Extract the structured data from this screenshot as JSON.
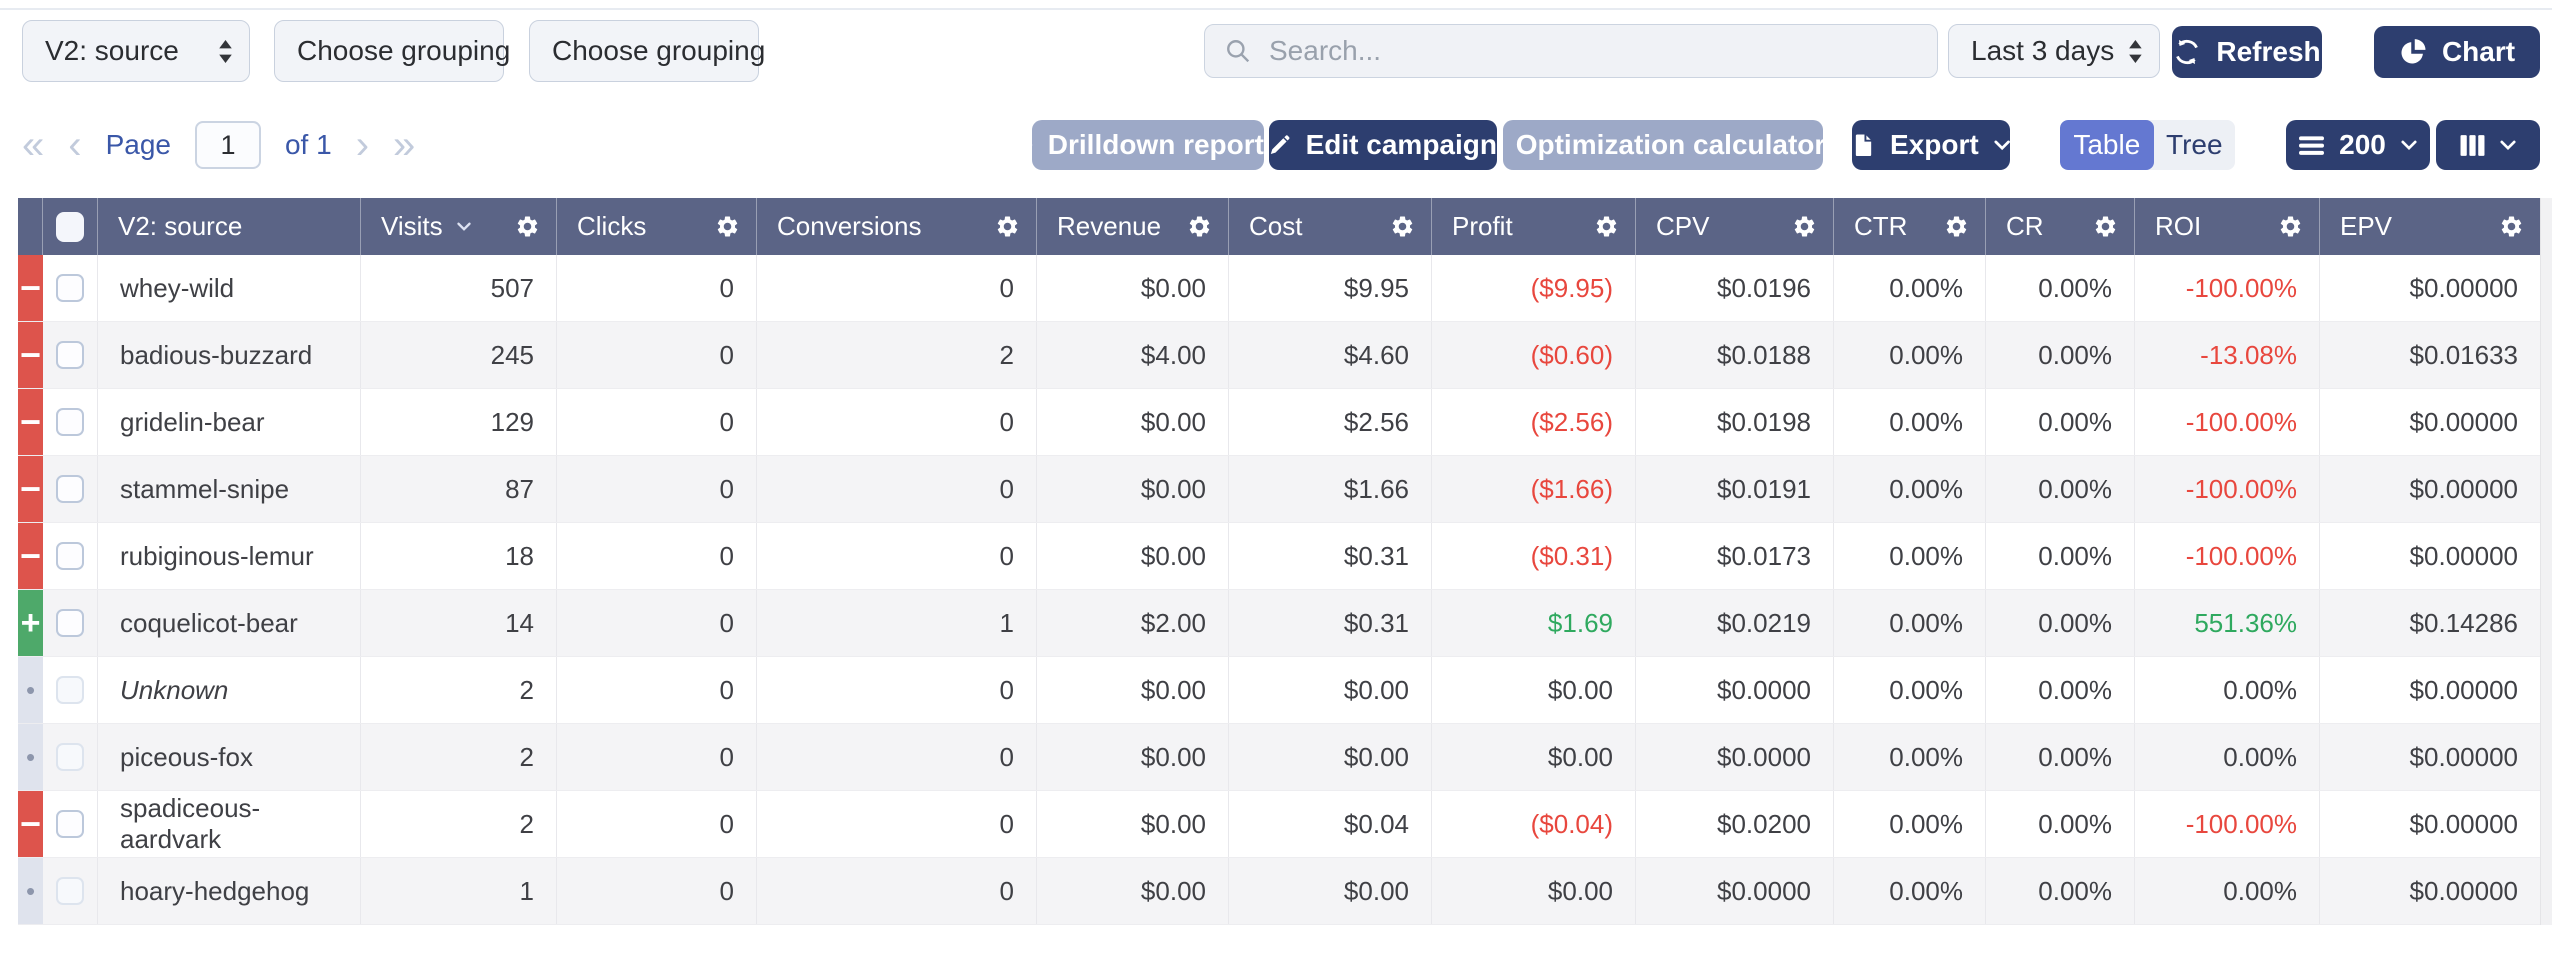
{
  "toolbar": {
    "selects": [
      "V2: source",
      "Choose grouping",
      "Choose grouping"
    ],
    "search_placeholder": "Search...",
    "date_range": "Last 3 days",
    "refresh": "Refresh",
    "chart": "Chart"
  },
  "controls": {
    "pagination": {
      "page": "Page",
      "current": "1",
      "of": "of 1"
    },
    "drilldown": "Drilldown report",
    "edit_campaign": "Edit campaign",
    "optimization": "Optimization calculator",
    "export": "Export",
    "view_toggle": {
      "table": "Table",
      "tree": "Tree",
      "active": "Table"
    },
    "rows_limit": "200"
  },
  "table": {
    "headers": {
      "source": "V2: source",
      "visits": "Visits",
      "clicks": "Clicks",
      "conversions": "Conversions",
      "revenue": "Revenue",
      "cost": "Cost",
      "profit": "Profit",
      "cpv": "CPV",
      "ctr": "CTR",
      "cr": "CR",
      "roi": "ROI",
      "epv": "EPV"
    },
    "sorted_by": "Visits",
    "rows": [
      {
        "status": "loss",
        "name": "whey-wild",
        "italic": false,
        "visits": "507",
        "clicks": "0",
        "conversions": "0",
        "revenue": "$0.00",
        "cost": "$9.95",
        "profit": "($9.95)",
        "profit_state": "neg",
        "cpv": "$0.0196",
        "ctr": "0.00%",
        "cr": "0.00%",
        "roi": "-100.00%",
        "roi_state": "neg",
        "epv": "$0.00000"
      },
      {
        "status": "loss",
        "name": "badious-buzzard",
        "italic": false,
        "visits": "245",
        "clicks": "0",
        "conversions": "2",
        "revenue": "$4.00",
        "cost": "$4.60",
        "profit": "($0.60)",
        "profit_state": "neg",
        "cpv": "$0.0188",
        "ctr": "0.00%",
        "cr": "0.00%",
        "roi": "-13.08%",
        "roi_state": "neg",
        "epv": "$0.01633"
      },
      {
        "status": "loss",
        "name": "gridelin-bear",
        "italic": false,
        "visits": "129",
        "clicks": "0",
        "conversions": "0",
        "revenue": "$0.00",
        "cost": "$2.56",
        "profit": "($2.56)",
        "profit_state": "neg",
        "cpv": "$0.0198",
        "ctr": "0.00%",
        "cr": "0.00%",
        "roi": "-100.00%",
        "roi_state": "neg",
        "epv": "$0.00000"
      },
      {
        "status": "loss",
        "name": "stammel-snipe",
        "italic": false,
        "visits": "87",
        "clicks": "0",
        "conversions": "0",
        "revenue": "$0.00",
        "cost": "$1.66",
        "profit": "($1.66)",
        "profit_state": "neg",
        "cpv": "$0.0191",
        "ctr": "0.00%",
        "cr": "0.00%",
        "roi": "-100.00%",
        "roi_state": "neg",
        "epv": "$0.00000"
      },
      {
        "status": "loss",
        "name": "rubiginous-lemur",
        "italic": false,
        "visits": "18",
        "clicks": "0",
        "conversions": "0",
        "revenue": "$0.00",
        "cost": "$0.31",
        "profit": "($0.31)",
        "profit_state": "neg",
        "cpv": "$0.0173",
        "ctr": "0.00%",
        "cr": "0.00%",
        "roi": "-100.00%",
        "roi_state": "neg",
        "epv": "$0.00000"
      },
      {
        "status": "profit",
        "name": "coquelicot-bear",
        "italic": false,
        "visits": "14",
        "clicks": "0",
        "conversions": "1",
        "revenue": "$2.00",
        "cost": "$0.31",
        "profit": "$1.69",
        "profit_state": "pos",
        "cpv": "$0.0219",
        "ctr": "0.00%",
        "cr": "0.00%",
        "roi": "551.36%",
        "roi_state": "pos",
        "epv": "$0.14286"
      },
      {
        "status": "neutral",
        "name": "Unknown",
        "italic": true,
        "visits": "2",
        "clicks": "0",
        "conversions": "0",
        "revenue": "$0.00",
        "cost": "$0.00",
        "profit": "$0.00",
        "profit_state": "zero",
        "cpv": "$0.0000",
        "ctr": "0.00%",
        "cr": "0.00%",
        "roi": "0.00%",
        "roi_state": "zero",
        "epv": "$0.00000"
      },
      {
        "status": "neutral",
        "name": "piceous-fox",
        "italic": false,
        "visits": "2",
        "clicks": "0",
        "conversions": "0",
        "revenue": "$0.00",
        "cost": "$0.00",
        "profit": "$0.00",
        "profit_state": "zero",
        "cpv": "$0.0000",
        "ctr": "0.00%",
        "cr": "0.00%",
        "roi": "0.00%",
        "roi_state": "zero",
        "epv": "$0.00000"
      },
      {
        "status": "loss",
        "name": "spadiceous-aardvark",
        "italic": false,
        "visits": "2",
        "clicks": "0",
        "conversions": "0",
        "revenue": "$0.00",
        "cost": "$0.04",
        "profit": "($0.04)",
        "profit_state": "neg",
        "cpv": "$0.0200",
        "ctr": "0.00%",
        "cr": "0.00%",
        "roi": "-100.00%",
        "roi_state": "neg",
        "epv": "$0.00000"
      },
      {
        "status": "neutral",
        "name": "hoary-hedgehog",
        "italic": false,
        "visits": "1",
        "clicks": "0",
        "conversions": "0",
        "revenue": "$0.00",
        "cost": "$0.00",
        "profit": "$0.00",
        "profit_state": "zero",
        "cpv": "$0.0000",
        "ctr": "0.00%",
        "cr": "0.00%",
        "roi": "0.00%",
        "roi_state": "zero",
        "epv": "$0.00000"
      }
    ]
  },
  "colors": {
    "navy_button": "#2d3e6f",
    "light_button": "#9da9c7",
    "toggle_active": "#6478d1",
    "table_header": "#5b6486",
    "loss_indicator": "#dd544c",
    "profit_indicator": "#4ea96a",
    "negative_text": "#e8473e",
    "positive_text": "#2fa95f",
    "pagination_text": "#3a57a8"
  }
}
